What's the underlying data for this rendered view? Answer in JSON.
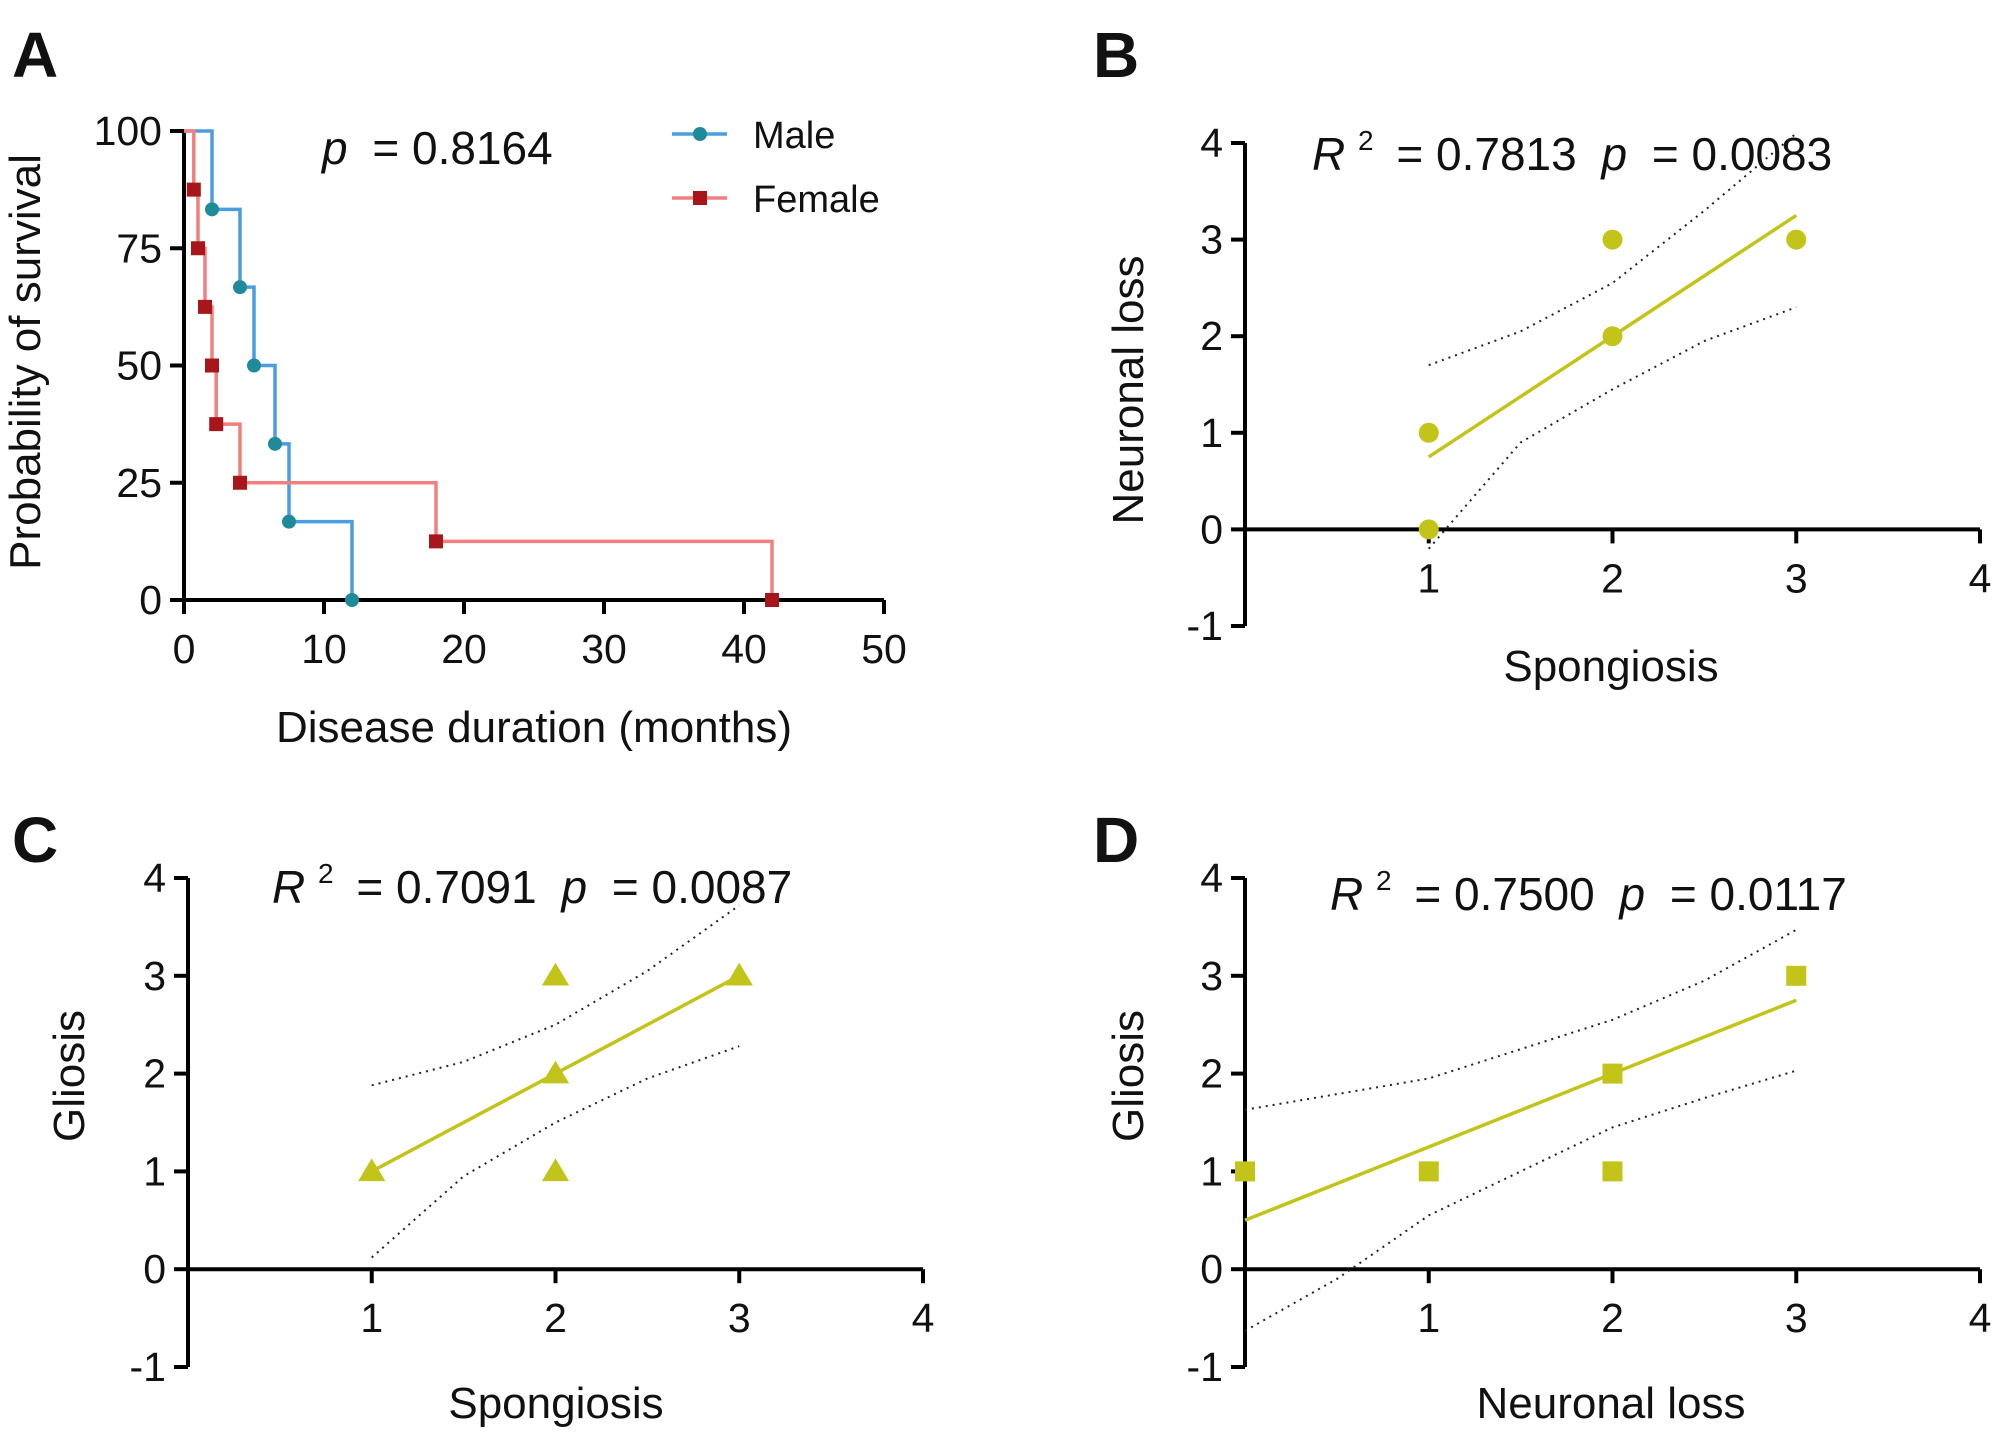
{
  "chart_data": [
    {
      "panel": "A",
      "type": "line",
      "subtype": "kaplan-meier",
      "title": "",
      "xlabel": "Disease duration (months)",
      "ylabel": "Probability of survival",
      "xlim": [
        0,
        50
      ],
      "ylim": [
        0,
        100
      ],
      "xticks": [
        0,
        10,
        20,
        30,
        40,
        50
      ],
      "yticks": [
        0,
        25,
        50,
        75,
        100
      ],
      "grid": false,
      "legend_position": "top-right",
      "annotation": {
        "p_label": "p",
        "p_value": "= 0.8164"
      },
      "series": [
        {
          "name": "Male",
          "color": "#4a9de0",
          "marker_color": "#1f8a99",
          "marker": "circle",
          "steps": [
            [
              0,
              100
            ],
            [
              2,
              83.3
            ],
            [
              4,
              66.7
            ],
            [
              5,
              50
            ],
            [
              6.5,
              33.3
            ],
            [
              7.5,
              16.7
            ],
            [
              12,
              0
            ]
          ],
          "events": [
            [
              2,
              83.3
            ],
            [
              4,
              66.7
            ],
            [
              5,
              50
            ],
            [
              6.5,
              33.3
            ],
            [
              7.5,
              16.7
            ],
            [
              12,
              0
            ]
          ]
        },
        {
          "name": "Female",
          "color": "#f27f7f",
          "marker_color": "#a8161b",
          "marker": "square",
          "steps": [
            [
              0,
              100
            ],
            [
              0.7,
              87.5
            ],
            [
              1,
              75
            ],
            [
              1.5,
              62.5
            ],
            [
              2,
              50
            ],
            [
              2.3,
              37.5
            ],
            [
              4,
              25
            ],
            [
              18,
              12.5
            ],
            [
              42,
              0
            ]
          ],
          "events": [
            [
              0.7,
              87.5
            ],
            [
              1,
              75
            ],
            [
              1.5,
              62.5
            ],
            [
              2,
              50
            ],
            [
              2.3,
              37.5
            ],
            [
              4,
              25
            ],
            [
              18,
              12.5
            ],
            [
              42,
              0
            ]
          ]
        }
      ]
    },
    {
      "panel": "B",
      "type": "scatter",
      "title": "",
      "xlabel": "Spongiosis",
      "ylabel": "Neuronal loss",
      "xlim": [
        0,
        4
      ],
      "ylim": [
        -1,
        4
      ],
      "xticks": [
        1,
        2,
        3,
        4
      ],
      "yticks": [
        -1,
        0,
        1,
        2,
        3,
        4
      ],
      "grid": false,
      "color": "#c2c41a",
      "marker": "circle",
      "points": [
        [
          1,
          1
        ],
        [
          1,
          0
        ],
        [
          2,
          3
        ],
        [
          2,
          2
        ],
        [
          3,
          3
        ]
      ],
      "fit": {
        "x": [
          1,
          3
        ],
        "y": [
          0.75,
          3.25
        ]
      },
      "ci_upper": [
        [
          1,
          1.7
        ],
        [
          1.5,
          2.05
        ],
        [
          2,
          2.55
        ],
        [
          2.5,
          3.3
        ],
        [
          3,
          4.1
        ]
      ],
      "ci_lower": [
        [
          1,
          -0.2
        ],
        [
          1.5,
          0.9
        ],
        [
          2,
          1.45
        ],
        [
          2.5,
          1.95
        ],
        [
          3,
          2.3
        ]
      ],
      "annotation": {
        "r_label": "R",
        "r_sup": "2",
        "r_value": "= 0.7813",
        "p_label": "p",
        "p_value": "= 0.0083"
      }
    },
    {
      "panel": "C",
      "type": "scatter",
      "title": "",
      "xlabel": "Spongiosis",
      "ylabel": "Gliosis",
      "xlim": [
        0,
        4
      ],
      "ylim": [
        -1,
        4
      ],
      "xticks": [
        1,
        2,
        3,
        4
      ],
      "yticks": [
        -1,
        0,
        1,
        2,
        3,
        4
      ],
      "grid": false,
      "color": "#c2c41a",
      "marker": "triangle",
      "points": [
        [
          1,
          1
        ],
        [
          2,
          3
        ],
        [
          2,
          2
        ],
        [
          2,
          1
        ],
        [
          3,
          3
        ]
      ],
      "fit": {
        "x": [
          1,
          3
        ],
        "y": [
          1.0,
          3.0
        ]
      },
      "ci_upper": [
        [
          1,
          1.88
        ],
        [
          1.5,
          2.12
        ],
        [
          2,
          2.5
        ],
        [
          2.5,
          3.05
        ],
        [
          3,
          3.72
        ]
      ],
      "ci_lower": [
        [
          1,
          0.12
        ],
        [
          1.5,
          0.95
        ],
        [
          2,
          1.5
        ],
        [
          2.5,
          1.95
        ],
        [
          3,
          2.28
        ]
      ],
      "annotation": {
        "r_label": "R",
        "r_sup": "2",
        "r_value": "= 0.7091",
        "p_label": "p",
        "p_value": "= 0.0087"
      }
    },
    {
      "panel": "D",
      "type": "scatter",
      "title": "",
      "xlabel": "Neuronal loss",
      "ylabel": "Gliosis",
      "xlim": [
        0,
        4
      ],
      "ylim": [
        -1,
        4
      ],
      "xticks": [
        1,
        2,
        3,
        4
      ],
      "yticks": [
        -1,
        0,
        1,
        2,
        3,
        4
      ],
      "grid": false,
      "color": "#c2c41a",
      "marker": "square",
      "points": [
        [
          0,
          1
        ],
        [
          1,
          1
        ],
        [
          2,
          2
        ],
        [
          2,
          1
        ],
        [
          3,
          3
        ]
      ],
      "fit": {
        "x": [
          0,
          3
        ],
        "y": [
          0.5,
          2.75
        ]
      },
      "ci_upper": [
        [
          0,
          1.63
        ],
        [
          1,
          1.95
        ],
        [
          2,
          2.55
        ],
        [
          2.5,
          2.95
        ],
        [
          3,
          3.47
        ]
      ],
      "ci_lower": [
        [
          0,
          -0.63
        ],
        [
          0.5,
          -0.1
        ],
        [
          1,
          0.55
        ],
        [
          2,
          1.45
        ],
        [
          2.5,
          1.75
        ],
        [
          3,
          2.03
        ]
      ],
      "annotation": {
        "r_label": "R",
        "r_sup": "2",
        "r_value": "= 0.7500",
        "p_label": "p",
        "p_value": "= 0.0117"
      }
    }
  ]
}
